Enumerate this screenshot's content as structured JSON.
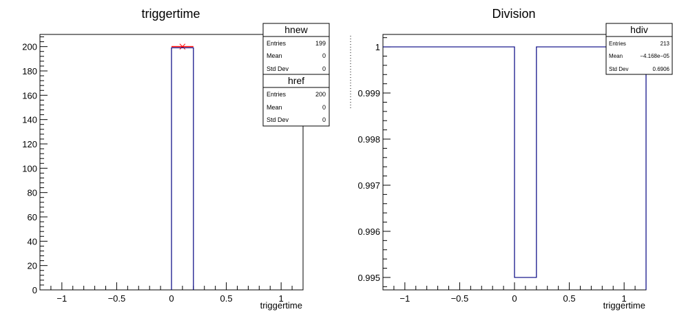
{
  "chart_data": [
    {
      "type": "histogram",
      "title": "triggertime",
      "xlabel": "triggertime",
      "ylabel": "",
      "xlim": [
        -1.2,
        1.2
      ],
      "ylim": [
        0,
        210
      ],
      "x_ticks": [
        -1,
        -0.5,
        0,
        0.5,
        1
      ],
      "x_tick_labels": [
        "−1",
        "−0.5",
        "0",
        "0.5",
        "1"
      ],
      "y_ticks": [
        0,
        20,
        40,
        60,
        80,
        100,
        120,
        140,
        160,
        180,
        200
      ],
      "y_tick_labels": [
        "0",
        "20",
        "40",
        "60",
        "80",
        "100",
        "120",
        "140",
        "160",
        "180",
        "200"
      ],
      "series": [
        {
          "name": "hnew",
          "color": "#000080",
          "bins": [
            {
              "x_low": 0,
              "x_high": 0.2,
              "value": 199
            }
          ],
          "stats": [
            {
              "label": "Entries",
              "value": "199"
            },
            {
              "label": "Mean",
              "value": "0"
            },
            {
              "label": "Std Dev",
              "value": "0"
            }
          ]
        },
        {
          "name": "href",
          "color": "#ff0000",
          "bins": [
            {
              "x_low": 0,
              "x_high": 0.2,
              "value": 200
            }
          ],
          "marker_x": 0.1,
          "stats": [
            {
              "label": "Entries",
              "value": "200"
            },
            {
              "label": "Mean",
              "value": "0"
            },
            {
              "label": "Std Dev",
              "value": "0"
            }
          ]
        }
      ],
      "grid": false
    },
    {
      "type": "histogram",
      "title": "Division",
      "xlabel": "triggertime",
      "ylabel": "",
      "xlim": [
        -1.2,
        1.2
      ],
      "ylim": [
        0.99473,
        1.00027
      ],
      "x_ticks": [
        -1,
        -0.5,
        0,
        0.5,
        1
      ],
      "x_tick_labels": [
        "−1",
        "−0.5",
        "0",
        "0.5",
        "1"
      ],
      "y_ticks": [
        0.995,
        0.996,
        0.997,
        0.998,
        0.999,
        1
      ],
      "y_tick_labels": [
        "0.995",
        "0.996",
        "0.997",
        "0.998",
        "0.999",
        "1"
      ],
      "series": [
        {
          "name": "hdiv",
          "color": "#000080",
          "steps": [
            {
              "x_low": -1.2,
              "x_high": 0,
              "value": 1
            },
            {
              "x_low": 0,
              "x_high": 0.2,
              "value": 0.995
            },
            {
              "x_low": 0.2,
              "x_high": 1.2,
              "value": 1
            }
          ],
          "stats": [
            {
              "label": "Entries",
              "value": "213"
            },
            {
              "label": "Mean",
              "value": "−4.168e−05"
            },
            {
              "label": "Std Dev",
              "value": "0.6906"
            }
          ]
        }
      ],
      "grid": false
    }
  ]
}
